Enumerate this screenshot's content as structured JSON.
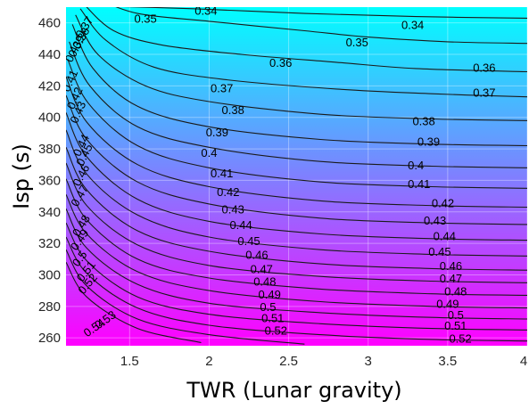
{
  "chart_data": {
    "type": "contour",
    "title": "",
    "xlabel": "TWR (Lunar gravity)",
    "ylabel": "Isp (s)",
    "xlim": [
      1.1,
      4.0
    ],
    "ylim": [
      255,
      470
    ],
    "x_ticks": [
      1.5,
      2,
      2.5,
      3,
      3.5,
      4
    ],
    "x_tick_labels": [
      "1.5",
      "2",
      "2.5",
      "3",
      "3.5",
      "4"
    ],
    "y_ticks": [
      260,
      280,
      300,
      320,
      340,
      360,
      380,
      400,
      420,
      440,
      460
    ],
    "y_tick_labels": [
      "260",
      "280",
      "300",
      "320",
      "340",
      "360",
      "380",
      "400",
      "420",
      "440",
      "460"
    ],
    "grid": true,
    "colormap": [
      "#00ffff",
      "#ff00ff"
    ],
    "levels": [
      0.34,
      0.35,
      0.36,
      0.37,
      0.38,
      0.39,
      0.4,
      0.41,
      0.42,
      0.43,
      0.44,
      0.45,
      0.46,
      0.47,
      0.48,
      0.49,
      0.5,
      0.51,
      0.52,
      0.53,
      0.54
    ],
    "contours": [
      {
        "level": 0.34,
        "label": "0.34",
        "points": [
          [
            1.2,
            471
          ],
          [
            1.9,
            469
          ],
          [
            2.6,
            466
          ],
          [
            3.3,
            464
          ],
          [
            4.0,
            463
          ]
        ]
      },
      {
        "level": 0.35,
        "label": "0.35",
        "points": [
          [
            1.28,
            476
          ],
          [
            1.55,
            466
          ],
          [
            2.0,
            461
          ],
          [
            2.6,
            455
          ],
          [
            3.0,
            451
          ],
          [
            3.5,
            448
          ],
          [
            4.0,
            447
          ]
        ]
      },
      {
        "level": 0.36,
        "label": "0.36",
        "points": [
          [
            1.22,
            471
          ],
          [
            1.4,
            455
          ],
          [
            1.7,
            446
          ],
          [
            2.2,
            440
          ],
          [
            2.8,
            435
          ],
          [
            3.3,
            431
          ],
          [
            4.0,
            429
          ]
        ]
      },
      {
        "level": 0.37,
        "label": "0.37",
        "points": [
          [
            1.19,
            469
          ],
          [
            1.35,
            449
          ],
          [
            1.65,
            432
          ],
          [
            2.1,
            424
          ],
          [
            2.8,
            418
          ],
          [
            3.4,
            415
          ],
          [
            4.0,
            413
          ]
        ]
      },
      {
        "level": 0.38,
        "label": "0.38",
        "points": [
          [
            1.16,
            465
          ],
          [
            1.3,
            440
          ],
          [
            1.6,
            420
          ],
          [
            2.0,
            410
          ],
          [
            2.7,
            402
          ],
          [
            3.4,
            399
          ],
          [
            4.0,
            398
          ]
        ]
      },
      {
        "level": 0.39,
        "label": "0.39",
        "points": [
          [
            1.14,
            459
          ],
          [
            1.27,
            431
          ],
          [
            1.55,
            407
          ],
          [
            2.0,
            394
          ],
          [
            2.7,
            386
          ],
          [
            3.4,
            383
          ],
          [
            4.0,
            382
          ]
        ]
      },
      {
        "level": 0.4,
        "label": "0.4",
        "points": [
          [
            1.12,
            448
          ],
          [
            1.25,
            420
          ],
          [
            1.55,
            394
          ],
          [
            2.0,
            381
          ],
          [
            2.7,
            372
          ],
          [
            3.4,
            369
          ],
          [
            4.0,
            368
          ]
        ]
      },
      {
        "level": 0.41,
        "label": "0.41",
        "points": [
          [
            1.11,
            437
          ],
          [
            1.24,
            409
          ],
          [
            1.55,
            382
          ],
          [
            2.0,
            368
          ],
          [
            2.7,
            359
          ],
          [
            3.4,
            356
          ],
          [
            4.0,
            355
          ]
        ]
      },
      {
        "level": 0.42,
        "label": "0.42",
        "points": [
          [
            1.1,
            426
          ],
          [
            1.23,
            397
          ],
          [
            1.55,
            370
          ],
          [
            2.0,
            356
          ],
          [
            2.7,
            347
          ],
          [
            3.4,
            344
          ],
          [
            4.0,
            343
          ]
        ]
      },
      {
        "level": 0.43,
        "label": "0.43",
        "points": [
          [
            1.1,
            414
          ],
          [
            1.23,
            386
          ],
          [
            1.55,
            359
          ],
          [
            2.0,
            345
          ],
          [
            2.7,
            336
          ],
          [
            3.4,
            333
          ],
          [
            4.0,
            332
          ]
        ]
      },
      {
        "level": 0.44,
        "label": "0.44",
        "points": [
          [
            1.1,
            403
          ],
          [
            1.23,
            375
          ],
          [
            1.55,
            348
          ],
          [
            2.0,
            334
          ],
          [
            2.7,
            326
          ],
          [
            3.4,
            323
          ],
          [
            4.0,
            322
          ]
        ]
      },
      {
        "level": 0.45,
        "label": "0.45",
        "points": [
          [
            1.1,
            392
          ],
          [
            1.23,
            364
          ],
          [
            1.55,
            338
          ],
          [
            2.0,
            324
          ],
          [
            2.7,
            316
          ],
          [
            3.4,
            313
          ],
          [
            4.0,
            312
          ]
        ]
      },
      {
        "level": 0.46,
        "label": "0.46",
        "points": [
          [
            1.1,
            381
          ],
          [
            1.23,
            354
          ],
          [
            1.55,
            328
          ],
          [
            2.0,
            315
          ],
          [
            2.7,
            307
          ],
          [
            3.4,
            304
          ],
          [
            4.0,
            303
          ]
        ]
      },
      {
        "level": 0.47,
        "label": "0.47",
        "points": [
          [
            1.1,
            371
          ],
          [
            1.23,
            344
          ],
          [
            1.55,
            319
          ],
          [
            2.0,
            306
          ],
          [
            2.7,
            299
          ],
          [
            3.4,
            296
          ],
          [
            4.0,
            295
          ]
        ]
      },
      {
        "level": 0.48,
        "label": "0.48",
        "points": [
          [
            1.1,
            361
          ],
          [
            1.23,
            335
          ],
          [
            1.55,
            310
          ],
          [
            2.0,
            298
          ],
          [
            2.7,
            291
          ],
          [
            3.4,
            288
          ],
          [
            4.0,
            287
          ]
        ]
      },
      {
        "level": 0.49,
        "label": "0.49",
        "points": [
          [
            1.1,
            351
          ],
          [
            1.23,
            326
          ],
          [
            1.55,
            302
          ],
          [
            2.0,
            290
          ],
          [
            2.7,
            283
          ],
          [
            3.4,
            280
          ],
          [
            4.0,
            279
          ]
        ]
      },
      {
        "level": 0.5,
        "label": "0.5",
        "points": [
          [
            1.1,
            342
          ],
          [
            1.23,
            317
          ],
          [
            1.55,
            294
          ],
          [
            2.0,
            282
          ],
          [
            2.7,
            276
          ],
          [
            3.4,
            273
          ],
          [
            4.0,
            272
          ]
        ]
      },
      {
        "level": 0.51,
        "label": "0.51",
        "points": [
          [
            1.1,
            333
          ],
          [
            1.23,
            309
          ],
          [
            1.55,
            286
          ],
          [
            2.0,
            275
          ],
          [
            2.7,
            269
          ],
          [
            3.4,
            266
          ],
          [
            4.0,
            265
          ]
        ]
      },
      {
        "level": 0.52,
        "label": "0.52",
        "points": [
          [
            1.1,
            324
          ],
          [
            1.23,
            301
          ],
          [
            1.55,
            279
          ],
          [
            2.0,
            268
          ],
          [
            2.7,
            262
          ],
          [
            3.4,
            259
          ],
          [
            4.0,
            258
          ]
        ]
      },
      {
        "level": 0.53,
        "label": "0.53",
        "points": [
          [
            1.1,
            316
          ],
          [
            1.23,
            293
          ],
          [
            1.55,
            272
          ],
          [
            2.0,
            262
          ],
          [
            2.6,
            256
          ]
        ]
      },
      {
        "level": 0.54,
        "label": "0.54",
        "points": [
          [
            1.1,
            308
          ],
          [
            1.23,
            286
          ],
          [
            1.55,
            266
          ],
          [
            1.95,
            257
          ]
        ]
      }
    ],
    "contour_labels": [
      {
        "text": "0.34",
        "x": 1.98,
        "y": 467
      },
      {
        "text": "0.35",
        "x": 1.6,
        "y": 462
      },
      {
        "text": "0.34",
        "x": 3.28,
        "y": 458
      },
      {
        "text": "0.35",
        "x": 2.93,
        "y": 447
      },
      {
        "text": "0.36",
        "x": 2.45,
        "y": 434
      },
      {
        "text": "0.36",
        "x": 3.73,
        "y": 431
      },
      {
        "text": "0.37",
        "x": 2.08,
        "y": 418
      },
      {
        "text": "0.37",
        "x": 3.73,
        "y": 415
      },
      {
        "text": "0.38",
        "x": 2.15,
        "y": 404
      },
      {
        "text": "0.38",
        "x": 3.35,
        "y": 397
      },
      {
        "text": "0.39",
        "x": 2.05,
        "y": 390
      },
      {
        "text": "0.39",
        "x": 3.38,
        "y": 384
      },
      {
        "text": "0.4",
        "x": 2.0,
        "y": 377
      },
      {
        "text": "0.4",
        "x": 3.3,
        "y": 369
      },
      {
        "text": "0.41",
        "x": 2.08,
        "y": 364
      },
      {
        "text": "0.41",
        "x": 3.32,
        "y": 357
      },
      {
        "text": "0.42",
        "x": 2.12,
        "y": 352
      },
      {
        "text": "0.42",
        "x": 3.47,
        "y": 345
      },
      {
        "text": "0.43",
        "x": 2.15,
        "y": 341
      },
      {
        "text": "0.43",
        "x": 3.42,
        "y": 334
      },
      {
        "text": "0.44",
        "x": 2.2,
        "y": 331
      },
      {
        "text": "0.44",
        "x": 3.48,
        "y": 324
      },
      {
        "text": "0.45",
        "x": 2.25,
        "y": 321
      },
      {
        "text": "0.45",
        "x": 3.45,
        "y": 314
      },
      {
        "text": "0.46",
        "x": 2.3,
        "y": 312
      },
      {
        "text": "0.46",
        "x": 3.52,
        "y": 305
      },
      {
        "text": "0.47",
        "x": 2.33,
        "y": 303
      },
      {
        "text": "0.47",
        "x": 3.52,
        "y": 297
      },
      {
        "text": "0.48",
        "x": 2.35,
        "y": 295
      },
      {
        "text": "0.48",
        "x": 3.55,
        "y": 289
      },
      {
        "text": "0.49",
        "x": 2.38,
        "y": 287
      },
      {
        "text": "0.49",
        "x": 3.5,
        "y": 281
      },
      {
        "text": "0.5",
        "x": 2.37,
        "y": 279
      },
      {
        "text": "0.5",
        "x": 3.55,
        "y": 274
      },
      {
        "text": "0.51",
        "x": 2.4,
        "y": 272
      },
      {
        "text": "0.51",
        "x": 3.55,
        "y": 267
      },
      {
        "text": "0.52",
        "x": 2.42,
        "y": 264
      },
      {
        "text": "0.52",
        "x": 3.58,
        "y": 259
      },
      {
        "text": "0.37",
        "x": 1.22,
        "y": 457,
        "angle": -58
      },
      {
        "text": "0.38",
        "x": 1.2,
        "y": 450,
        "angle": -62
      },
      {
        "text": "0.39",
        "x": 1.17,
        "y": 445,
        "angle": -64
      },
      {
        "text": "0.4",
        "x": 1.14,
        "y": 440,
        "angle": -66
      },
      {
        "text": "0.41",
        "x": 1.13,
        "y": 423,
        "angle": -66
      },
      {
        "text": "0.42",
        "x": 1.16,
        "y": 412,
        "angle": -66
      },
      {
        "text": "0.43",
        "x": 1.18,
        "y": 403,
        "angle": -66
      },
      {
        "text": "0.44",
        "x": 1.2,
        "y": 382,
        "angle": -64
      },
      {
        "text": "0.45",
        "x": 1.22,
        "y": 376,
        "angle": -64
      },
      {
        "text": "0.46",
        "x": 1.2,
        "y": 363,
        "angle": -62
      },
      {
        "text": "0.47",
        "x": 1.19,
        "y": 350,
        "angle": -60
      },
      {
        "text": "0.48",
        "x": 1.2,
        "y": 331,
        "angle": -58
      },
      {
        "text": "0.49",
        "x": 1.19,
        "y": 322,
        "angle": -56
      },
      {
        "text": "0.5",
        "x": 1.19,
        "y": 310,
        "angle": -54
      },
      {
        "text": "0.51",
        "x": 1.23,
        "y": 302,
        "angle": -52
      },
      {
        "text": "0.52",
        "x": 1.24,
        "y": 294,
        "angle": -50
      },
      {
        "text": "0.53",
        "x": 1.35,
        "y": 271,
        "angle": -35
      },
      {
        "text": "0.54",
        "x": 1.28,
        "y": 266,
        "angle": -35
      }
    ]
  }
}
